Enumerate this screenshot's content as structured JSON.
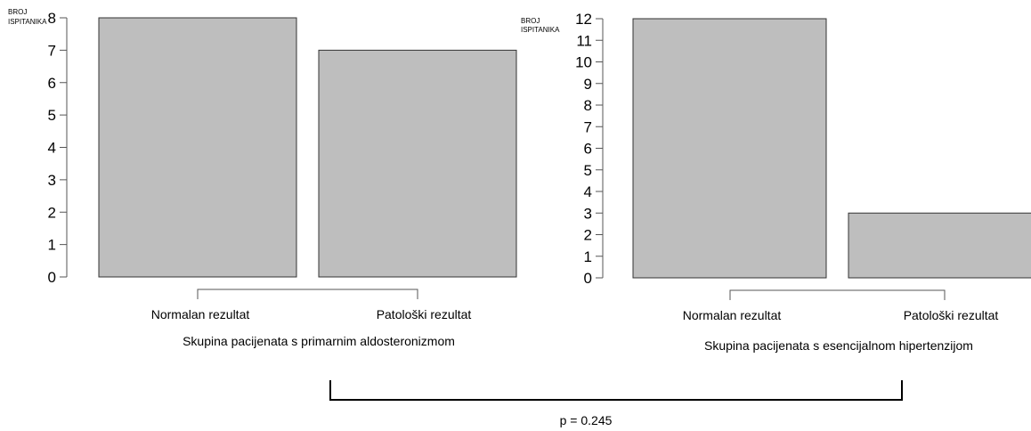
{
  "chart_data": [
    {
      "type": "bar",
      "ylabel": "BROJ ISPITANIKA",
      "ylabel_lines": [
        "BROJ",
        "ISPITANIKA"
      ],
      "ylim": [
        0,
        8
      ],
      "yticks": [
        "0",
        "1",
        "2",
        "3",
        "4",
        "5",
        "6",
        "7",
        "8"
      ],
      "categories": [
        "Normalan rezultat",
        "Patološki rezultat"
      ],
      "values": [
        8,
        7
      ],
      "xlabel": "Skupina pacijenata s primarnim aldosteronizmom",
      "bar_color": "#bebebe",
      "grid": false
    },
    {
      "type": "bar",
      "ylabel": "BROJ ISPITANIKA",
      "ylabel_lines": [
        "BROJ",
        "ISPITANIKA"
      ],
      "ylim": [
        0,
        12
      ],
      "yticks": [
        "0",
        "1",
        "2",
        "3",
        "4",
        "5",
        "6",
        "7",
        "8",
        "9",
        "10",
        "11",
        "12"
      ],
      "categories": [
        "Normalan rezultat",
        "Patološki rezultat"
      ],
      "values": [
        12,
        3
      ],
      "xlabel": "Skupina pacijenata s esencijalnom hipertenzijom",
      "bar_color": "#bebebe",
      "grid": false
    }
  ],
  "comparison": {
    "label": "p = 0.245"
  }
}
